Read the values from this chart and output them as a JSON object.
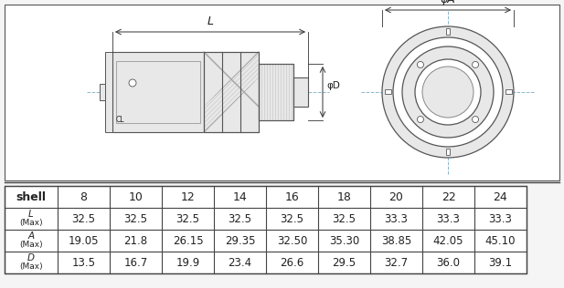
{
  "bg_color": "#f5f5f5",
  "diagram_bg": "#f0f0f0",
  "table_headers": [
    "shell",
    "8",
    "10",
    "12",
    "14",
    "16",
    "18",
    "20",
    "22",
    "24"
  ],
  "table_data": [
    [
      "32.5",
      "32.5",
      "32.5",
      "32.5",
      "32.5",
      "32.5",
      "33.3",
      "33.3",
      "33.3"
    ],
    [
      "19.05",
      "21.8",
      "26.15",
      "29.35",
      "32.50",
      "35.30",
      "38.85",
      "42.05",
      "45.10"
    ],
    [
      "13.5",
      "16.7",
      "19.9",
      "23.4",
      "26.6",
      "29.5",
      "32.7",
      "36.0",
      "39.1"
    ]
  ],
  "row_syms": [
    "L",
    "A",
    "D"
  ],
  "line_color": "#888888",
  "dark_line": "#555555",
  "dim_line_color": "#333333",
  "crosshair_color": "#7ab0c8",
  "text_color": "#222222",
  "table_border": "#444444",
  "connector_fill": "#e8e8e8",
  "connector_mid": "#d0d0d0",
  "connector_dark": "#999999",
  "hatch_color": "#aaaaaa",
  "white": "#ffffff"
}
